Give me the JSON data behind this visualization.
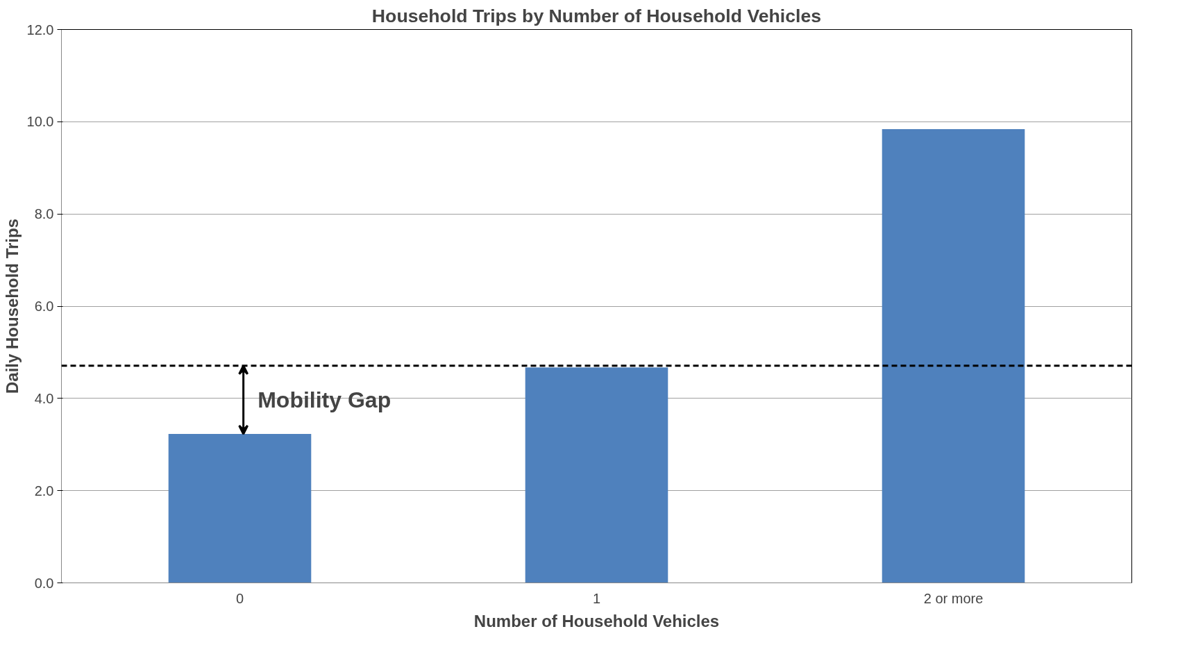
{
  "chart_data": {
    "type": "bar",
    "title": "Household Trips by Number of Household Vehicles",
    "xlabel": "Number of Household Vehicles",
    "ylabel": "Daily Household Trips",
    "categories": [
      "0",
      "1",
      "2 or more"
    ],
    "values": [
      3.23,
      4.67,
      9.84
    ],
    "color": "#4f81bd",
    "ylim": [
      0,
      12
    ],
    "yticks": [
      {
        "value": 0,
        "label": "0.0"
      },
      {
        "value": 2,
        "label": "2.0"
      },
      {
        "value": 4,
        "label": "4.0"
      },
      {
        "value": 6,
        "label": "6.0"
      },
      {
        "value": 8,
        "label": "8.0"
      },
      {
        "value": 10,
        "label": "10.0"
      },
      {
        "value": 12,
        "label": "12.0"
      }
    ],
    "grid": "y",
    "ref_lines": [
      {
        "axis": "y",
        "value": 4.71,
        "color": "#000000",
        "line_style": "dashed"
      }
    ],
    "annotations": [
      "Mobility Gap"
    ]
  }
}
